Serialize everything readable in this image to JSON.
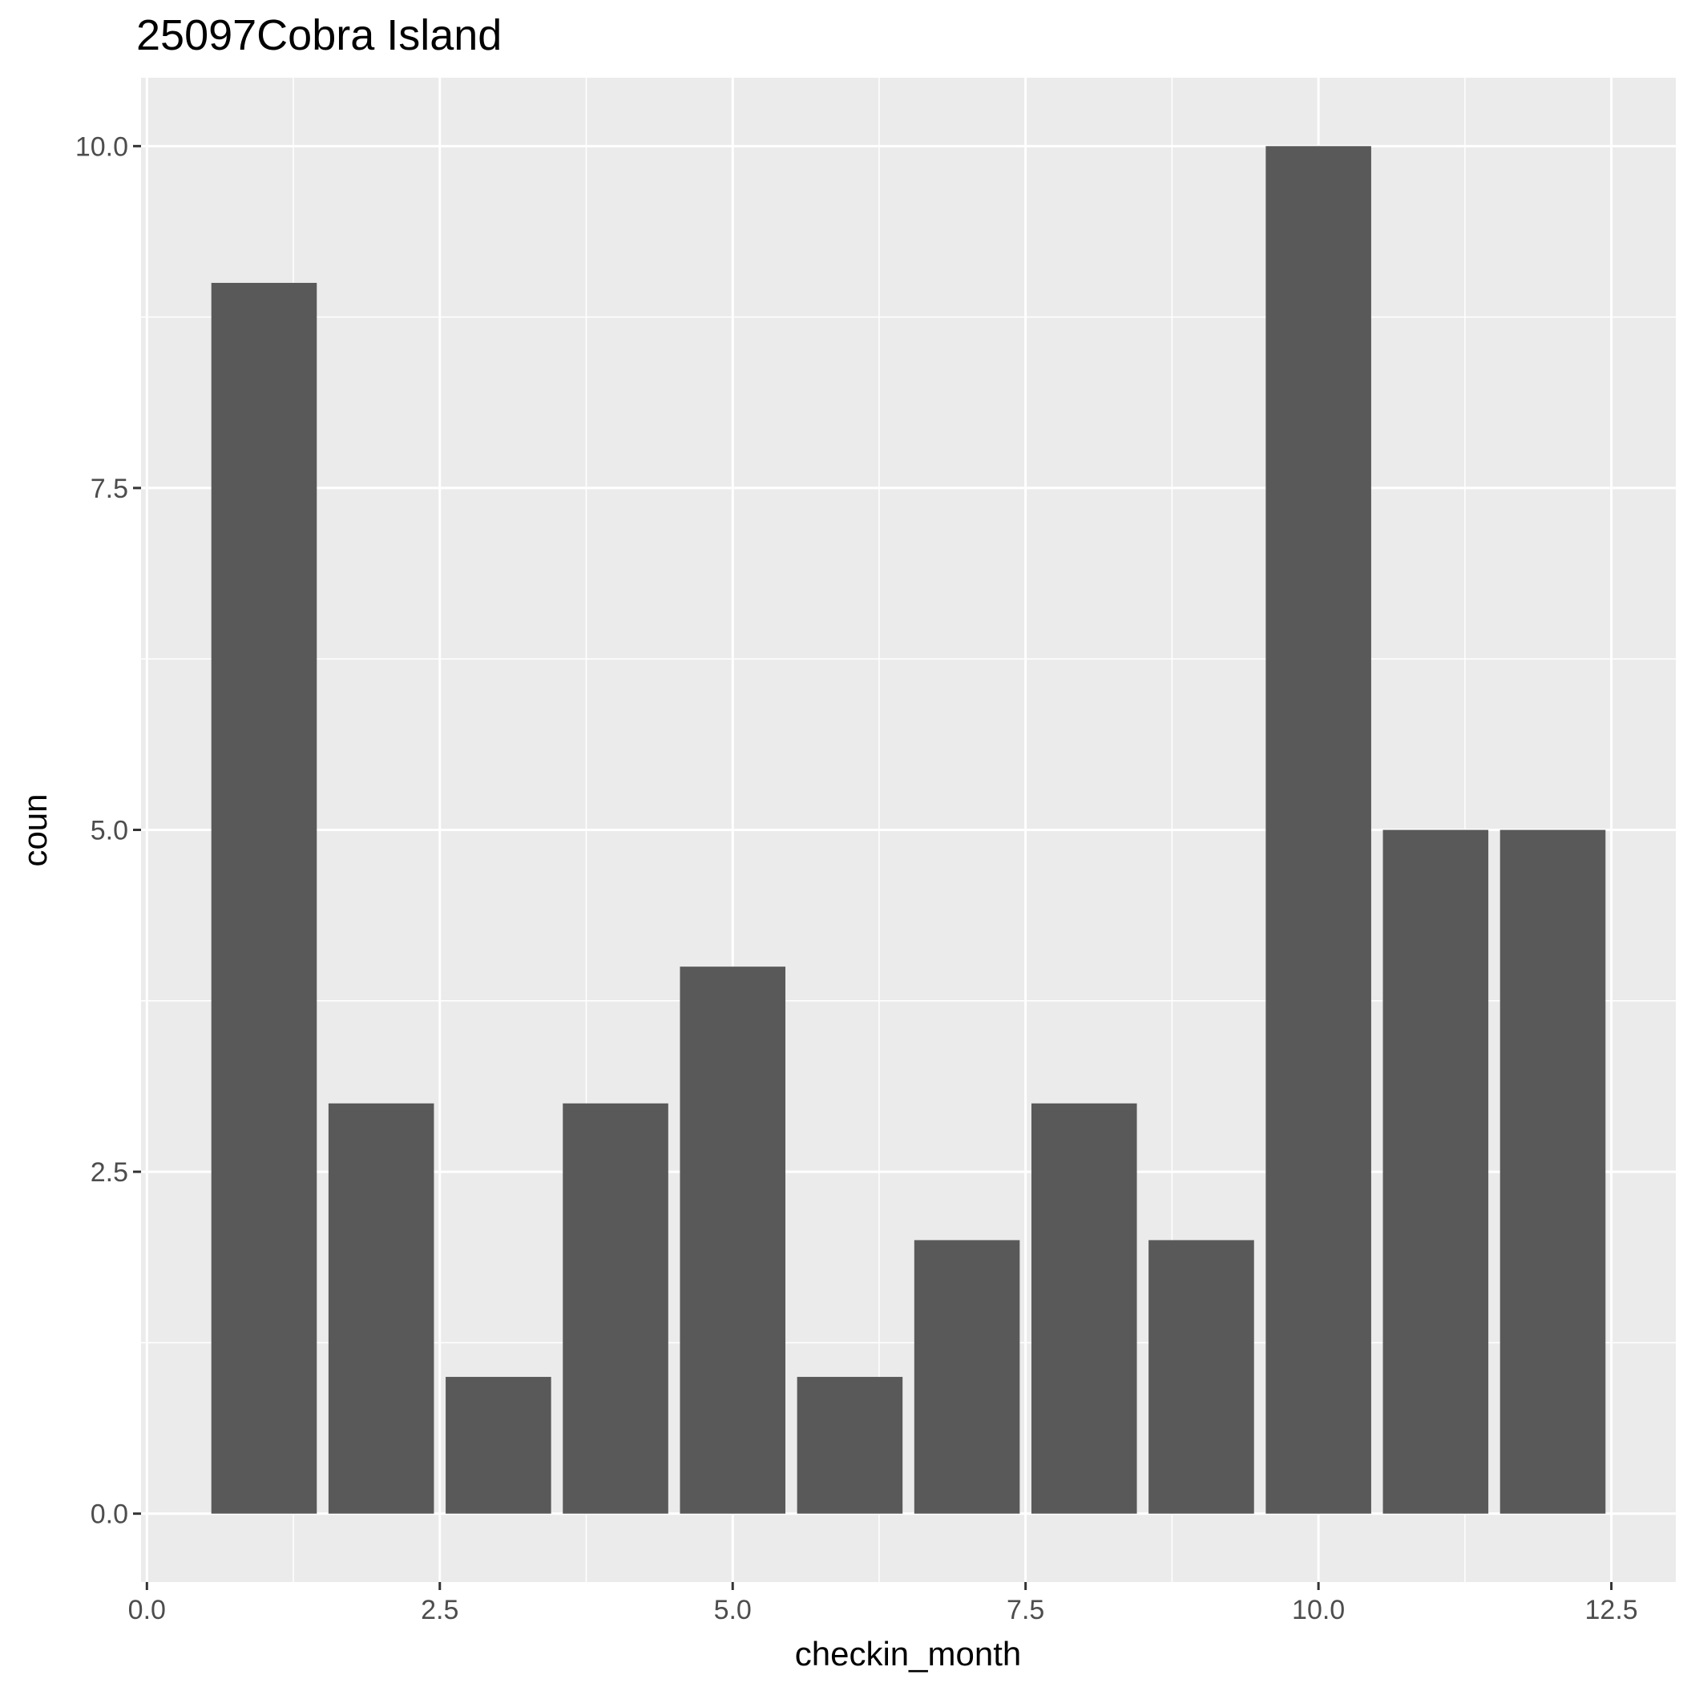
{
  "chart_data": {
    "type": "bar",
    "title": "25097Cobra Island",
    "xlabel": "checkin_month",
    "ylabel": "coun",
    "x": [
      1,
      2,
      3,
      4,
      5,
      6,
      7,
      8,
      9,
      10,
      11,
      12
    ],
    "values": [
      9,
      3,
      1,
      3,
      4,
      1,
      2,
      3,
      2,
      10,
      5,
      5
    ],
    "bar_width": 0.9,
    "xlim": [
      -0.05,
      13.05
    ],
    "ylim": [
      -0.5,
      10.5
    ],
    "xticks": [
      0,
      2.5,
      5,
      7.5,
      10,
      12.5
    ],
    "xtick_labels": [
      "0.0",
      "2.5",
      "5.0",
      "7.5",
      "10.0",
      "12.5"
    ],
    "yticks": [
      0,
      2.5,
      5,
      7.5,
      10
    ],
    "ytick_labels": [
      "0.0",
      "2.5",
      "5.0",
      "7.5",
      "10.0"
    ],
    "grid": true,
    "colors": {
      "bar": "#595959",
      "panel_background": "#ebebeb",
      "grid_major": "#ffffff",
      "tick_label": "#4d4d4d",
      "tick_mark": "#333333"
    }
  }
}
